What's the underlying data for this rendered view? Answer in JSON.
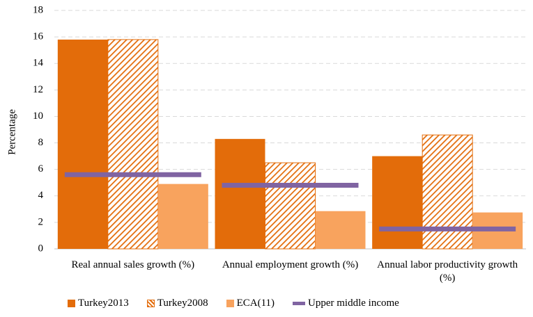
{
  "chart_data": {
    "type": "bar",
    "y_label": "Percentage",
    "categories": [
      "Real annual sales growth (%)",
      "Annual employment growth (%)",
      "Annual labor productivity growth (%)"
    ],
    "series": [
      {
        "name": "Turkey2013",
        "color": "#e36c0a",
        "kind": "bar",
        "values": [
          15.8,
          8.3,
          7.0
        ]
      },
      {
        "name": "Turkey2008",
        "color": "#e36c0a",
        "kind": "bar",
        "pattern": "hatch",
        "values": [
          15.8,
          6.5,
          8.6
        ]
      },
      {
        "name": "ECA(11)",
        "color": "#f8a35e",
        "kind": "bar",
        "values": [
          4.9,
          2.85,
          2.75
        ]
      },
      {
        "name": "Upper middle income",
        "color": "#8064a2",
        "kind": "line",
        "values": [
          5.6,
          4.8,
          1.5
        ]
      }
    ],
    "ylim": [
      0,
      18
    ],
    "yticks": [
      0,
      2,
      4,
      6,
      8,
      10,
      12,
      14,
      16,
      18
    ],
    "grid": true
  }
}
